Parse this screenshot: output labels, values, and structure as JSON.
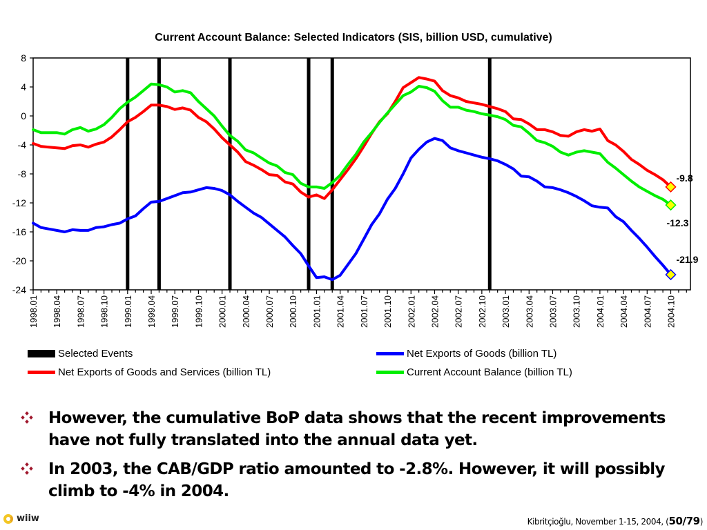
{
  "chart_data": {
    "type": "line",
    "title": "Current Account Balance: Selected Indicators (SIS, billion USD, cumulative)",
    "xlabel": "",
    "ylabel": "",
    "ylim": [
      -24,
      8
    ],
    "yticks": [
      8,
      4,
      0,
      -4,
      -8,
      -12,
      -16,
      -20,
      -24
    ],
    "x_tick_labels": [
      "1998.01",
      "1998.04",
      "1998.07",
      "1998.10",
      "1999.01",
      "1999.04",
      "1999.07",
      "1999.10",
      "2000.01",
      "2000.04",
      "2000.07",
      "2000.10",
      "2001.01",
      "2001.04",
      "2001.07",
      "2001.10",
      "2002.01",
      "2002.04",
      "2002.07",
      "2002.10",
      "2003.01",
      "2003.04",
      "2003.07",
      "2003.10",
      "2004.01",
      "2004.04",
      "2004.07",
      "2004.10"
    ],
    "x_start": "1998.01",
    "x_end_axis": "2004.12",
    "grid": false,
    "legend_position": "bottom",
    "selected_events": [
      "1999.01",
      "1999.05",
      "2000.02",
      "2000.12",
      "2001.03",
      "2002.11"
    ],
    "series": [
      {
        "name": "Net Exports of Goods (billion TL)",
        "color": "#0000ff",
        "end_label": "-21.9",
        "values": [
          -14.8,
          -15.4,
          -15.6,
          -15.8,
          -16.0,
          -15.7,
          -15.8,
          -15.8,
          -15.4,
          -15.3,
          -15.0,
          -14.8,
          -14.2,
          -13.8,
          -12.8,
          -11.9,
          -11.8,
          -11.4,
          -11.0,
          -10.6,
          -10.5,
          -10.2,
          -9.9,
          -10.0,
          -10.3,
          -10.9,
          -11.8,
          -12.6,
          -13.4,
          -14.0,
          -14.9,
          -15.8,
          -16.7,
          -17.9,
          -19.0,
          -20.7,
          -22.3,
          -22.2,
          -22.6,
          -22.0,
          -20.5,
          -19.0,
          -17.0,
          -15.0,
          -13.5,
          -11.5,
          -10.0,
          -8.0,
          -5.8,
          -4.6,
          -3.6,
          -3.1,
          -3.4,
          -4.4,
          -4.8,
          -5.1,
          -5.4,
          -5.7,
          -5.9,
          -6.2,
          -6.7,
          -7.3,
          -8.3,
          -8.4,
          -9.0,
          -9.8,
          -9.9,
          -10.2,
          -10.6,
          -11.1,
          -11.7,
          -12.4,
          -12.6,
          -12.7,
          -13.9,
          -14.6,
          -15.8,
          -16.9,
          -18.1,
          -19.4,
          -20.6,
          -21.9
        ]
      },
      {
        "name": "Net Exports of Goods and Services (billion TL)",
        "color": "#ff0000",
        "end_label": "-9.8",
        "values": [
          -3.8,
          -4.2,
          -4.3,
          -4.4,
          -4.5,
          -4.1,
          -4.0,
          -4.3,
          -3.9,
          -3.6,
          -2.9,
          -1.9,
          -0.8,
          -0.2,
          0.6,
          1.5,
          1.5,
          1.3,
          0.9,
          1.1,
          0.8,
          -0.2,
          -0.8,
          -1.8,
          -3.0,
          -4.0,
          -5.0,
          -6.3,
          -6.8,
          -7.4,
          -8.1,
          -8.2,
          -9.1,
          -9.4,
          -10.5,
          -11.2,
          -10.9,
          -11.4,
          -10.2,
          -8.8,
          -7.4,
          -5.9,
          -4.2,
          -2.4,
          -0.8,
          0.3,
          2.0,
          3.9,
          4.6,
          5.3,
          5.1,
          4.8,
          3.5,
          2.8,
          2.5,
          2.0,
          1.8,
          1.6,
          1.3,
          1.0,
          0.6,
          -0.4,
          -0.5,
          -1.1,
          -1.9,
          -1.9,
          -2.2,
          -2.7,
          -2.8,
          -2.2,
          -1.9,
          -2.1,
          -1.8,
          -3.4,
          -4.0,
          -4.9,
          -6.0,
          -6.7,
          -7.5,
          -8.1,
          -8.8,
          -9.8
        ]
      },
      {
        "name": "Current Account Balance (billion TL)",
        "color": "#00ee00",
        "end_label": "-12.3",
        "values": [
          -1.9,
          -2.3,
          -2.3,
          -2.3,
          -2.5,
          -1.9,
          -1.6,
          -2.1,
          -1.8,
          -1.2,
          -0.2,
          1.0,
          1.9,
          2.6,
          3.5,
          4.4,
          4.3,
          4.0,
          3.3,
          3.5,
          3.2,
          2.0,
          1.0,
          0.0,
          -1.4,
          -2.7,
          -3.5,
          -4.7,
          -5.1,
          -5.8,
          -6.5,
          -6.9,
          -7.8,
          -8.1,
          -9.3,
          -9.8,
          -9.8,
          -10.0,
          -9.2,
          -8.2,
          -6.7,
          -5.3,
          -3.6,
          -2.3,
          -0.9,
          0.4,
          1.6,
          2.8,
          3.3,
          4.1,
          3.9,
          3.4,
          2.1,
          1.2,
          1.2,
          0.8,
          0.6,
          0.3,
          0.1,
          -0.1,
          -0.5,
          -1.3,
          -1.5,
          -2.4,
          -3.4,
          -3.7,
          -4.2,
          -5.0,
          -5.4,
          -5.0,
          -4.8,
          -5.0,
          -5.2,
          -6.4,
          -7.2,
          -8.1,
          -9.0,
          -9.8,
          -10.4,
          -11.0,
          -11.5,
          -12.3
        ]
      }
    ],
    "legend": [
      {
        "label": "Selected Events",
        "color": "#000000",
        "kind": "bar"
      },
      {
        "label": "Net Exports of Goods (billion TL)",
        "color": "#0000ff",
        "kind": "line"
      },
      {
        "label": "Net Exports of Goods and Services (billion TL)",
        "color": "#ff0000",
        "kind": "line"
      },
      {
        "label": "Current Account Balance (billion TL)",
        "color": "#00ee00",
        "kind": "line"
      }
    ],
    "end_marker_color": "#ffff00"
  },
  "bullets": [
    "However, the cumulative BoP data shows that the recent improvements have not fully translated into the annual data yet.",
    "In 2003, the CAB/GDP ratio amounted to -2.8%. However, it will possibly climb to -4% in 2004."
  ],
  "bullet_color": "#a0182d",
  "footer": {
    "logo_text": "wiiw",
    "credit": "Kibritçioğlu, November 1-15, 2004, (",
    "page": "50/79",
    "close": ")"
  }
}
